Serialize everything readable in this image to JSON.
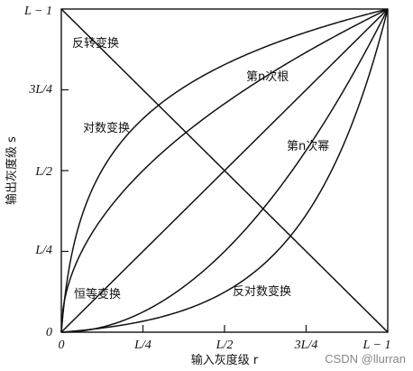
{
  "chart_data": {
    "type": "line",
    "xlabel": "输入灰度级 r",
    "ylabel": "输出灰度级 s",
    "x_ticks": [
      "0",
      "L/4",
      "L/2",
      "3L/4",
      "L − 1"
    ],
    "y_ticks": [
      "0",
      "L/4",
      "L/2",
      "3L/4",
      "L − 1"
    ],
    "xlim": [
      0,
      1
    ],
    "ylim": [
      0,
      1
    ],
    "grid": false,
    "series": [
      {
        "name": "恒等变换",
        "kind": "identity",
        "x": [
          0,
          0.25,
          0.5,
          0.75,
          1
        ],
        "y": [
          0,
          0.25,
          0.5,
          0.75,
          1
        ]
      },
      {
        "name": "反转变换",
        "kind": "negative",
        "x": [
          0,
          0.25,
          0.5,
          0.75,
          1
        ],
        "y": [
          1,
          0.75,
          0.5,
          0.25,
          0
        ]
      },
      {
        "name": "对数变换",
        "kind": "log",
        "x": [
          0,
          0.05,
          0.1,
          0.2,
          0.3,
          0.5,
          0.7,
          1
        ],
        "y": [
          0,
          0.32,
          0.45,
          0.6,
          0.68,
          0.8,
          0.89,
          1
        ]
      },
      {
        "name": "第n次根",
        "kind": "nth_root",
        "x": [
          0,
          0.1,
          0.25,
          0.5,
          0.75,
          1
        ],
        "y": [
          0,
          0.32,
          0.5,
          0.71,
          0.87,
          1
        ]
      },
      {
        "name": "第n次幂",
        "kind": "nth_power",
        "x": [
          0,
          0.25,
          0.5,
          0.75,
          1
        ],
        "y": [
          0,
          0.06,
          0.25,
          0.56,
          1
        ]
      },
      {
        "name": "反对数变换",
        "kind": "inverse_log",
        "x": [
          0,
          0.3,
          0.5,
          0.7,
          0.8,
          0.9,
          1
        ],
        "y": [
          0,
          0.02,
          0.06,
          0.14,
          0.22,
          0.37,
          1
        ]
      }
    ],
    "annotations": [
      "反转变换",
      "第n次根",
      "对数变换",
      "第n次幂",
      "恒等变换",
      "反对数变换"
    ]
  },
  "watermark": "CSDN @llurran"
}
